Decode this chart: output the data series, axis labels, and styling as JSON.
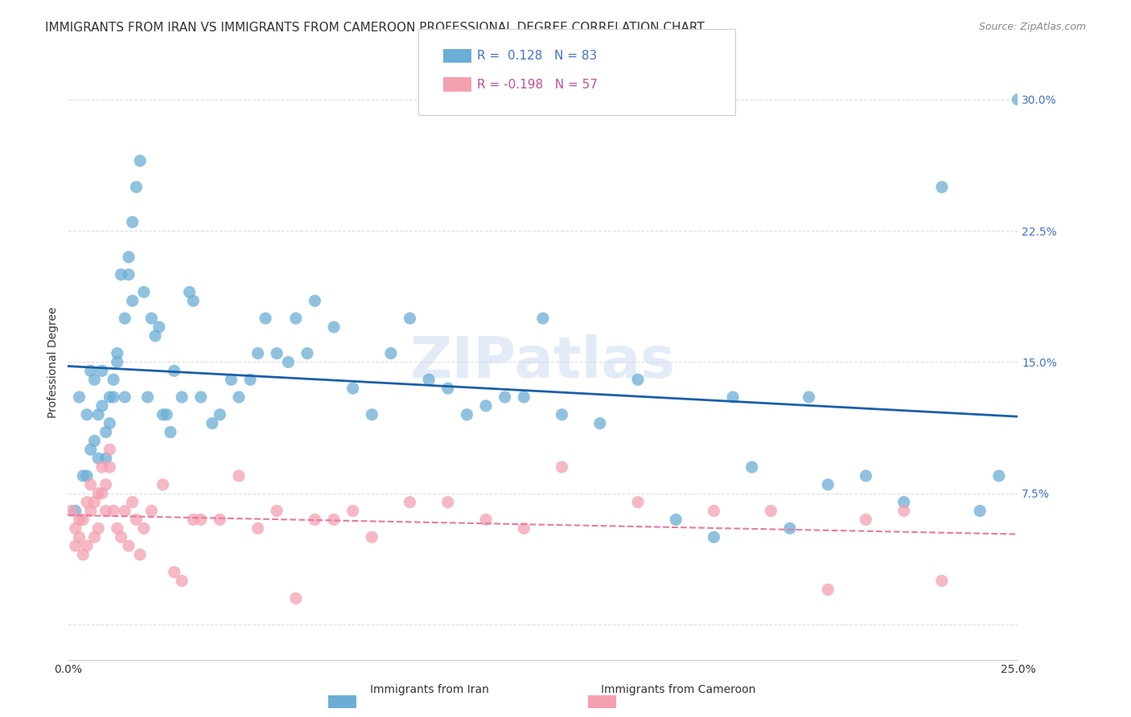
{
  "title": "IMMIGRANTS FROM IRAN VS IMMIGRANTS FROM CAMEROON PROFESSIONAL DEGREE CORRELATION CHART",
  "source": "Source: ZipAtlas.com",
  "xlabel_bottom": "",
  "ylabel": "Professional Degree",
  "x_ticks": [
    0.0,
    0.05,
    0.1,
    0.15,
    0.2,
    0.25
  ],
  "x_tick_labels": [
    "0.0%",
    "",
    "",
    "",
    "",
    "25.0%"
  ],
  "y_ticks": [
    0.0,
    0.075,
    0.15,
    0.225,
    0.3
  ],
  "y_tick_labels": [
    "",
    "7.5%",
    "15.0%",
    "22.5%",
    "30.0%"
  ],
  "xlim": [
    0.0,
    0.25
  ],
  "ylim": [
    -0.02,
    0.32
  ],
  "legend_iran_label": "Immigrants from Iran",
  "legend_cameroon_label": "Immigrants from Cameroon",
  "iran_R": "0.128",
  "iran_N": "83",
  "cameroon_R": "-0.198",
  "cameroon_N": "57",
  "iran_color": "#6baed6",
  "cameroon_color": "#f4a0b0",
  "iran_line_color": "#1a5fa8",
  "cameroon_line_color": "#e87a9a",
  "background_color": "#ffffff",
  "watermark": "ZIPatlas",
  "iran_points_x": [
    0.002,
    0.003,
    0.004,
    0.005,
    0.005,
    0.006,
    0.006,
    0.007,
    0.007,
    0.008,
    0.008,
    0.009,
    0.009,
    0.01,
    0.01,
    0.011,
    0.011,
    0.012,
    0.012,
    0.013,
    0.013,
    0.014,
    0.015,
    0.015,
    0.016,
    0.016,
    0.017,
    0.017,
    0.018,
    0.019,
    0.02,
    0.021,
    0.022,
    0.023,
    0.024,
    0.025,
    0.026,
    0.027,
    0.028,
    0.03,
    0.032,
    0.033,
    0.035,
    0.038,
    0.04,
    0.043,
    0.045,
    0.048,
    0.05,
    0.052,
    0.055,
    0.058,
    0.06,
    0.063,
    0.065,
    0.07,
    0.075,
    0.08,
    0.085,
    0.09,
    0.095,
    0.1,
    0.105,
    0.11,
    0.115,
    0.12,
    0.125,
    0.13,
    0.14,
    0.15,
    0.16,
    0.17,
    0.18,
    0.19,
    0.2,
    0.21,
    0.22,
    0.195,
    0.175,
    0.23,
    0.24,
    0.245,
    0.25
  ],
  "iran_points_y": [
    0.065,
    0.13,
    0.085,
    0.12,
    0.085,
    0.145,
    0.1,
    0.14,
    0.105,
    0.12,
    0.095,
    0.145,
    0.125,
    0.11,
    0.095,
    0.13,
    0.115,
    0.14,
    0.13,
    0.15,
    0.155,
    0.2,
    0.175,
    0.13,
    0.21,
    0.2,
    0.185,
    0.23,
    0.25,
    0.265,
    0.19,
    0.13,
    0.175,
    0.165,
    0.17,
    0.12,
    0.12,
    0.11,
    0.145,
    0.13,
    0.19,
    0.185,
    0.13,
    0.115,
    0.12,
    0.14,
    0.13,
    0.14,
    0.155,
    0.175,
    0.155,
    0.15,
    0.175,
    0.155,
    0.185,
    0.17,
    0.135,
    0.12,
    0.155,
    0.175,
    0.14,
    0.135,
    0.12,
    0.125,
    0.13,
    0.13,
    0.175,
    0.12,
    0.115,
    0.14,
    0.06,
    0.05,
    0.09,
    0.055,
    0.08,
    0.085,
    0.07,
    0.13,
    0.13,
    0.25,
    0.065,
    0.085,
    0.3
  ],
  "cameroon_points_x": [
    0.001,
    0.002,
    0.002,
    0.003,
    0.003,
    0.004,
    0.004,
    0.005,
    0.005,
    0.006,
    0.006,
    0.007,
    0.007,
    0.008,
    0.008,
    0.009,
    0.009,
    0.01,
    0.01,
    0.011,
    0.011,
    0.012,
    0.013,
    0.014,
    0.015,
    0.016,
    0.017,
    0.018,
    0.019,
    0.02,
    0.022,
    0.025,
    0.028,
    0.03,
    0.033,
    0.035,
    0.04,
    0.045,
    0.05,
    0.055,
    0.06,
    0.065,
    0.07,
    0.075,
    0.08,
    0.09,
    0.1,
    0.11,
    0.12,
    0.13,
    0.15,
    0.17,
    0.185,
    0.2,
    0.21,
    0.22,
    0.23
  ],
  "cameroon_points_y": [
    0.065,
    0.055,
    0.045,
    0.06,
    0.05,
    0.04,
    0.06,
    0.07,
    0.045,
    0.065,
    0.08,
    0.05,
    0.07,
    0.075,
    0.055,
    0.09,
    0.075,
    0.065,
    0.08,
    0.1,
    0.09,
    0.065,
    0.055,
    0.05,
    0.065,
    0.045,
    0.07,
    0.06,
    0.04,
    0.055,
    0.065,
    0.08,
    0.03,
    0.025,
    0.06,
    0.06,
    0.06,
    0.085,
    0.055,
    0.065,
    0.015,
    0.06,
    0.06,
    0.065,
    0.05,
    0.07,
    0.07,
    0.06,
    0.055,
    0.09,
    0.07,
    0.065,
    0.065,
    0.02,
    0.06,
    0.065,
    0.025
  ],
  "grid_color": "#dddddd",
  "title_fontsize": 11,
  "axis_label_fontsize": 10,
  "tick_fontsize": 10,
  "legend_fontsize": 11
}
